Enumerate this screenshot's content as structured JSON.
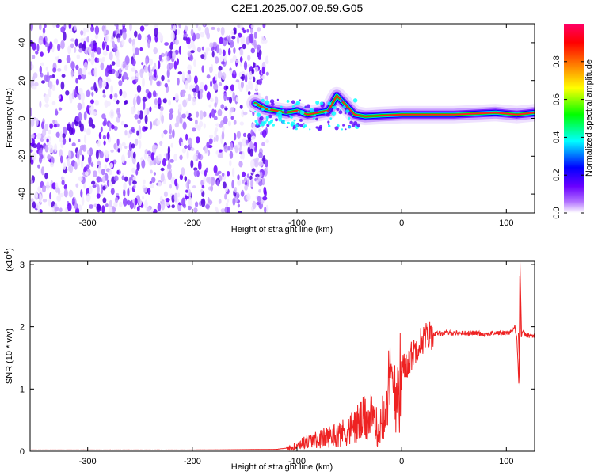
{
  "title": "C2E1.2025.007.09.59.G05",
  "chart_data": [
    {
      "type": "heatmap",
      "xlabel": "Height of straight line (km)",
      "ylabel": "Frequency (Hz)",
      "xlim": [
        -355,
        127
      ],
      "ylim": [
        -50,
        50
      ],
      "xticks": [
        -300,
        -200,
        -100,
        0,
        100
      ],
      "yticks": [
        -40,
        -20,
        0,
        20,
        40
      ],
      "colorbar": {
        "label": "Normalized spectral amplitude",
        "range": [
          0,
          1
        ],
        "ticks": [
          "0.0",
          "0.2",
          "0.4",
          "0.6",
          "0.8"
        ],
        "colors": [
          "#ffffff",
          "#6a00ff",
          "#0000ff",
          "#00ffff",
          "#00ff00",
          "#ffff00",
          "#ff8000",
          "#ff0000",
          "#ff0066"
        ]
      },
      "noise_region_x": [
        -355,
        -128
      ],
      "ridge": [
        {
          "x": -140,
          "y": 8
        },
        {
          "x": -130,
          "y": 5
        },
        {
          "x": -120,
          "y": 4
        },
        {
          "x": -110,
          "y": 3
        },
        {
          "x": -100,
          "y": 4
        },
        {
          "x": -90,
          "y": 2
        },
        {
          "x": -80,
          "y": 3
        },
        {
          "x": -70,
          "y": 4
        },
        {
          "x": -62,
          "y": 12
        },
        {
          "x": -55,
          "y": 8
        },
        {
          "x": -45,
          "y": 2
        },
        {
          "x": -35,
          "y": 1
        },
        {
          "x": -20,
          "y": 1.5
        },
        {
          "x": 0,
          "y": 2
        },
        {
          "x": 50,
          "y": 2
        },
        {
          "x": 90,
          "y": 3
        },
        {
          "x": 110,
          "y": 2
        },
        {
          "x": 127,
          "y": 3
        }
      ]
    },
    {
      "type": "line",
      "xlabel": "Height of straight line (km)",
      "ylabel": "SNR (10 * v/v)",
      "yscale_label": "(x10^4)",
      "xlim": [
        -355,
        127
      ],
      "ylim": [
        0,
        3.05
      ],
      "xticks": [
        -300,
        -200,
        -100,
        0,
        100
      ],
      "yticks": [
        0,
        1,
        2,
        3
      ],
      "color": "#ee2222",
      "series": [
        {
          "x": [
            -355,
            -300,
            -200,
            -120,
            -105,
            -100,
            -90,
            -80,
            -70,
            -60,
            -50,
            -40,
            -35,
            -30,
            -25,
            -22,
            -18,
            -15,
            -10,
            -5,
            0,
            5,
            10,
            15,
            20,
            25,
            30,
            40,
            50,
            60,
            70,
            80,
            90,
            100,
            105,
            108,
            110,
            112,
            113,
            114,
            116,
            120,
            127
          ],
          "y": [
            0.02,
            0.02,
            0.02,
            0.03,
            0.06,
            0.12,
            0.18,
            0.22,
            0.28,
            0.33,
            0.4,
            0.55,
            0.6,
            0.62,
            0.55,
            0.3,
            0.8,
            1.05,
            1.2,
            1.3,
            1.3,
            1.4,
            1.55,
            1.7,
            1.8,
            1.85,
            1.88,
            1.9,
            1.9,
            1.9,
            1.9,
            1.88,
            1.9,
            1.9,
            1.92,
            2.0,
            1.85,
            1.05,
            3.05,
            1.85,
            1.9,
            1.86,
            1.85
          ]
        }
      ]
    }
  ]
}
